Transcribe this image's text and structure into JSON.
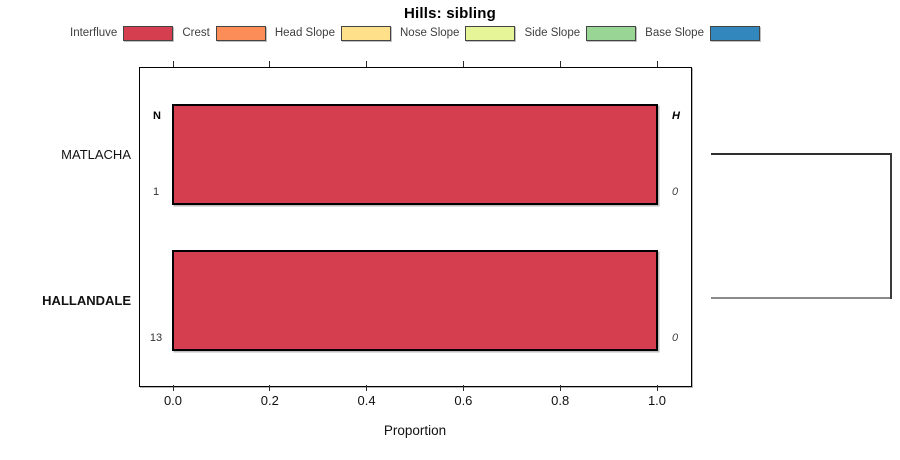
{
  "chart_data": {
    "type": "bar",
    "orientation": "horizontal",
    "title": "Hills: sibling",
    "xlabel": "Proportion",
    "xlim": [
      0,
      1
    ],
    "grid": false,
    "legend_position": "top",
    "x_ticks": [
      {
        "label": "0.0",
        "value": 0.0
      },
      {
        "label": "0.2",
        "value": 0.2
      },
      {
        "label": "0.4",
        "value": 0.4
      },
      {
        "label": "0.6",
        "value": 0.6
      },
      {
        "label": "0.8",
        "value": 0.8
      },
      {
        "label": "1.0",
        "value": 1.0
      }
    ],
    "legend": [
      {
        "label": "Interfluve",
        "color": "#D53E4F"
      },
      {
        "label": "Crest",
        "color": "#FC8D59"
      },
      {
        "label": "Head Slope",
        "color": "#FEE08B"
      },
      {
        "label": "Nose Slope",
        "color": "#E6F598"
      },
      {
        "label": "Side Slope",
        "color": "#99D594"
      },
      {
        "label": "Base Slope",
        "color": "#3288BD"
      }
    ],
    "column_headers": {
      "left": "N",
      "right": "H"
    },
    "rows": [
      {
        "category": "MATLACHA",
        "bold": false,
        "n": "1",
        "h": "0",
        "segments": [
          {
            "name": "Interfluve",
            "value": 1.0,
            "color": "#D53E4F"
          }
        ]
      },
      {
        "category": "HALLANDALE",
        "bold": true,
        "n": "13",
        "h": "0",
        "segments": [
          {
            "name": "Interfluve",
            "value": 1.0,
            "color": "#D53E4F"
          }
        ]
      }
    ],
    "dendrogram": {
      "rows_joined": [
        "MATLACHA",
        "HALLANDALE"
      ]
    }
  }
}
